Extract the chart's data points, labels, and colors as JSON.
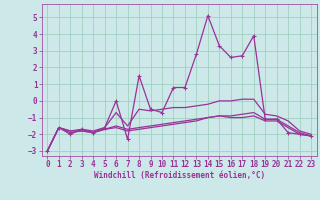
{
  "xlabel": "Windchill (Refroidissement éolien,°C)",
  "ylabel": "",
  "xlim": [
    -0.5,
    23.5
  ],
  "ylim": [
    -3.3,
    5.8
  ],
  "yticks": [
    -3,
    -2,
    -1,
    0,
    1,
    2,
    3,
    4,
    5
  ],
  "xticks": [
    0,
    1,
    2,
    3,
    4,
    5,
    6,
    7,
    8,
    9,
    10,
    11,
    12,
    13,
    14,
    15,
    16,
    17,
    18,
    19,
    20,
    21,
    22,
    23
  ],
  "bg_color": "#cce8e8",
  "grid_color": "#99ccbb",
  "line_color": "#993399",
  "lines": [
    {
      "x": [
        0,
        1,
        2,
        3,
        4,
        5,
        6,
        7,
        8,
        9,
        10,
        11,
        12,
        13,
        14,
        15,
        16,
        17,
        18,
        19,
        20,
        21,
        22,
        23
      ],
      "y": [
        -3.0,
        -1.6,
        -2.0,
        -1.7,
        -1.9,
        -1.6,
        0.0,
        -2.3,
        1.5,
        -0.5,
        -0.7,
        0.8,
        0.8,
        2.8,
        5.1,
        3.3,
        2.6,
        2.7,
        3.9,
        -1.1,
        -1.1,
        -1.9,
        -2.0,
        -2.1
      ],
      "marker": true,
      "linewidth": 0.9
    },
    {
      "x": [
        0,
        1,
        2,
        3,
        4,
        5,
        6,
        7,
        8,
        9,
        10,
        11,
        12,
        13,
        14,
        15,
        16,
        17,
        18,
        19,
        20,
        21,
        22,
        23
      ],
      "y": [
        -3.0,
        -1.6,
        -1.8,
        -1.7,
        -1.8,
        -1.6,
        -0.7,
        -1.5,
        -0.5,
        -0.6,
        -0.5,
        -0.4,
        -0.4,
        -0.3,
        -0.2,
        -0.0,
        0.0,
        0.1,
        0.1,
        -0.8,
        -0.9,
        -1.2,
        -1.8,
        -2.0
      ],
      "marker": false,
      "linewidth": 0.9
    },
    {
      "x": [
        0,
        1,
        2,
        3,
        4,
        5,
        6,
        7,
        8,
        9,
        10,
        11,
        12,
        13,
        14,
        15,
        16,
        17,
        18,
        19,
        20,
        21,
        22,
        23
      ],
      "y": [
        -3.0,
        -1.6,
        -1.8,
        -1.8,
        -1.9,
        -1.7,
        -1.5,
        -1.7,
        -1.6,
        -1.5,
        -1.4,
        -1.3,
        -1.2,
        -1.1,
        -1.0,
        -0.9,
        -0.9,
        -0.8,
        -0.7,
        -1.1,
        -1.1,
        -1.5,
        -1.9,
        -2.1
      ],
      "marker": false,
      "linewidth": 0.9
    },
    {
      "x": [
        0,
        1,
        2,
        3,
        4,
        5,
        6,
        7,
        8,
        9,
        10,
        11,
        12,
        13,
        14,
        15,
        16,
        17,
        18,
        19,
        20,
        21,
        22,
        23
      ],
      "y": [
        -3.0,
        -1.6,
        -1.9,
        -1.8,
        -1.9,
        -1.7,
        -1.6,
        -1.8,
        -1.7,
        -1.6,
        -1.5,
        -1.4,
        -1.3,
        -1.2,
        -1.0,
        -0.9,
        -1.0,
        -1.0,
        -0.9,
        -1.2,
        -1.2,
        -1.6,
        -2.0,
        -2.1
      ],
      "marker": false,
      "linewidth": 0.9
    }
  ]
}
